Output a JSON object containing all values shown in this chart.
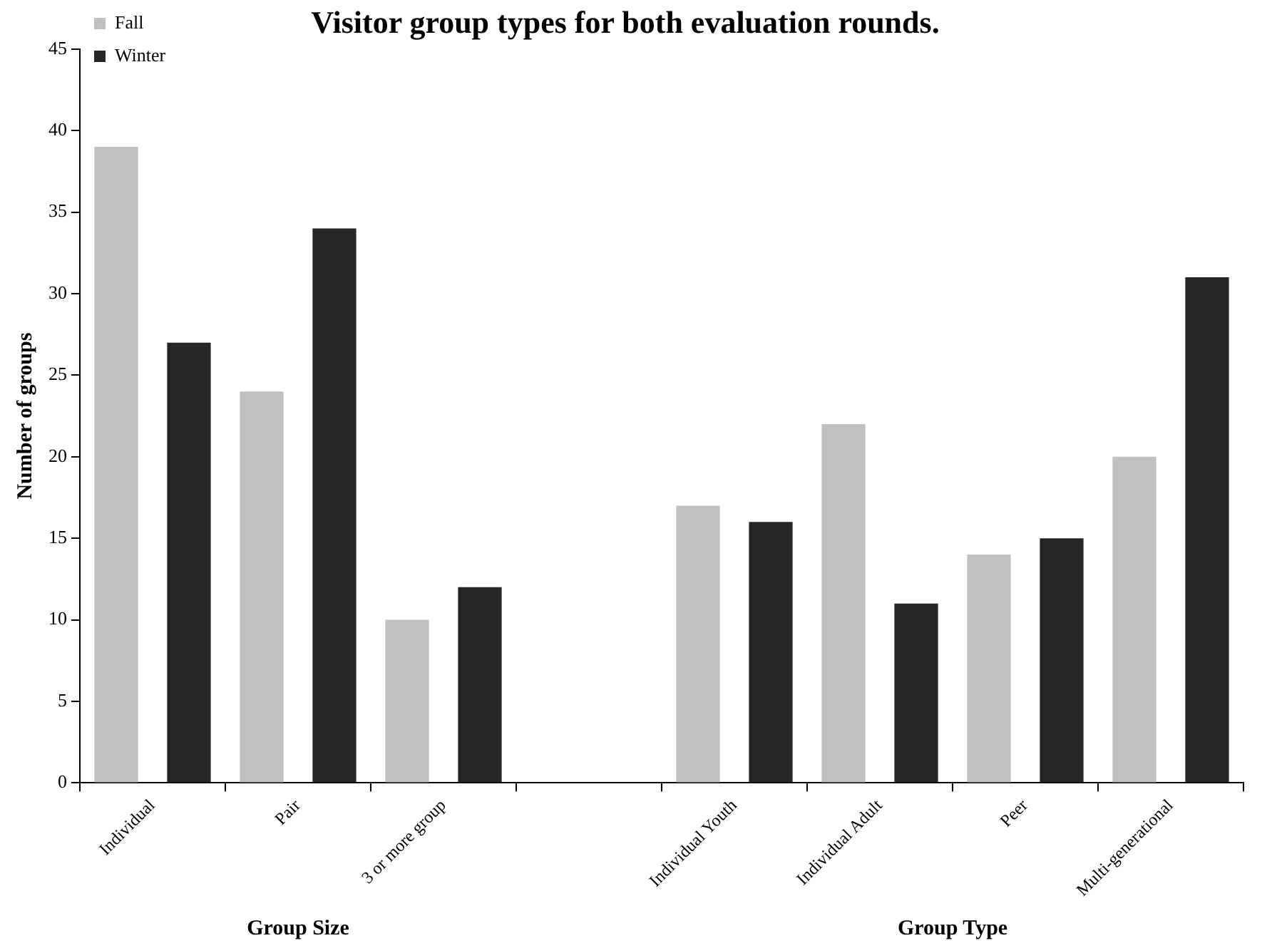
{
  "chart_data": {
    "type": "bar",
    "title": "Visitor group types for both evaluation rounds.",
    "ylabel": "Number of groups",
    "categories": [
      "Individual",
      "Pair",
      "3 or more group",
      null,
      "Individual Youth",
      "Individual Adult",
      "Peer",
      "Multi-generational"
    ],
    "series": [
      {
        "name": "Fall",
        "color": "#c0c0c0",
        "values": [
          39,
          24,
          10,
          null,
          17,
          22,
          14,
          20
        ]
      },
      {
        "name": "Winter",
        "color": "#262626",
        "values": [
          27,
          34,
          12,
          null,
          16,
          11,
          15,
          31
        ]
      }
    ],
    "ylim": [
      0,
      45
    ],
    "yticks": [
      0,
      5,
      10,
      15,
      20,
      25,
      30,
      35,
      40,
      45
    ],
    "grid": false,
    "legend": "top left",
    "annotations": [
      "Group Size",
      "Group Type"
    ]
  }
}
